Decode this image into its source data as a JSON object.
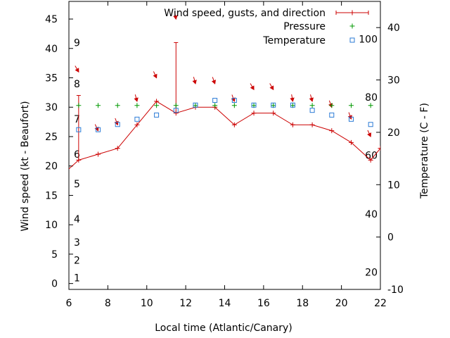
{
  "chart_data": {
    "type": "line",
    "title": "",
    "xlabel": "Local time (Atlantic/Canary)",
    "ylabel": "Wind speed (kt - Beaufort)",
    "y2label": "Temperature (C - F)",
    "xlim": [
      6,
      22
    ],
    "ylim": [
      -1,
      48
    ],
    "y2lim": [
      -10,
      45
    ],
    "x_ticks": [
      6,
      8,
      10,
      12,
      14,
      16,
      18,
      20,
      22
    ],
    "y_ticks": [
      0,
      5,
      10,
      15,
      20,
      25,
      30,
      35,
      40,
      45
    ],
    "y2_ticks": [
      -10,
      0,
      10,
      20,
      30,
      40
    ],
    "beaufort_labels": [
      {
        "label": "1",
        "kt": 1
      },
      {
        "label": "2",
        "kt": 4
      },
      {
        "label": "3",
        "kt": 7
      },
      {
        "label": "4",
        "kt": 11
      },
      {
        "label": "5",
        "kt": 17
      },
      {
        "label": "6",
        "kt": 22
      },
      {
        "label": "7",
        "kt": 28
      },
      {
        "label": "8",
        "kt": 34
      },
      {
        "label": "9",
        "kt": 41
      }
    ],
    "fahrenheit_labels": [
      {
        "label": "20",
        "celsius": -6.7
      },
      {
        "label": "40",
        "celsius": 4.4
      },
      {
        "label": "60",
        "celsius": 15.6
      },
      {
        "label": "80",
        "celsius": 26.7
      },
      {
        "label": "100",
        "celsius": 37.8
      }
    ],
    "legend_position": "top-right",
    "grid": false,
    "series": [
      {
        "name": "Wind speed, gusts, and direction",
        "color": "#cc0000",
        "x": [
          5.5,
          6.5,
          7.5,
          8.5,
          9.5,
          10.5,
          11.5,
          12.5,
          13.5,
          14.5,
          15.5,
          16.5,
          17.5,
          18.5,
          19.5,
          20.5,
          21.5,
          22.0
        ],
        "y": [
          18,
          21,
          22,
          23,
          27,
          31,
          29,
          30,
          30,
          27,
          29,
          29,
          27,
          27,
          26,
          24,
          21,
          23
        ],
        "gust_x": [
          6.5,
          11.5
        ],
        "gust_y": [
          32,
          41
        ],
        "arrow_x": [
          6.5,
          7.5,
          8.5,
          9.5,
          10.5,
          11.5,
          12.5,
          13.5,
          14.5,
          15.5,
          16.5,
          17.5,
          18.5,
          19.5,
          20.5,
          21.5
        ],
        "arrow_y": [
          36,
          26,
          27,
          31,
          35,
          45,
          34,
          34,
          31,
          33,
          33,
          31,
          31,
          30,
          28,
          25
        ],
        "arrow_angle": [
          -30,
          -25,
          -20,
          -15,
          -25,
          -10,
          -15,
          -20,
          -20,
          -30,
          -30,
          -10,
          -15,
          -20,
          -20,
          -25
        ]
      },
      {
        "name": "Pressure",
        "color": "#009900",
        "x": [
          6.5,
          7.5,
          8.5,
          9.5,
          10.5,
          11.5,
          12.5,
          13.5,
          14.5,
          15.5,
          16.5,
          17.5,
          18.5,
          19.5,
          20.5,
          21.5
        ],
        "y": [
          30.3,
          30.3,
          30.3,
          30.3,
          30.3,
          30.3,
          30.3,
          30.3,
          30.3,
          30.3,
          30.3,
          30.3,
          30.3,
          30.3,
          30.3,
          30.3
        ]
      },
      {
        "name": "Temperature",
        "color": "#2b7bd6",
        "axis": "y2",
        "x": [
          6.5,
          7.5,
          8.5,
          9.5,
          10.5,
          11.5,
          12.5,
          13.5,
          14.5,
          15.5,
          16.5,
          17.5,
          18.5,
          19.5,
          20.5,
          21.5
        ],
        "y": [
          20.5,
          20.5,
          21.5,
          22.5,
          23.3,
          24.2,
          25.2,
          26.1,
          26.1,
          25.2,
          25.2,
          25.2,
          24.2,
          23.3,
          22.5,
          21.5
        ]
      }
    ]
  }
}
